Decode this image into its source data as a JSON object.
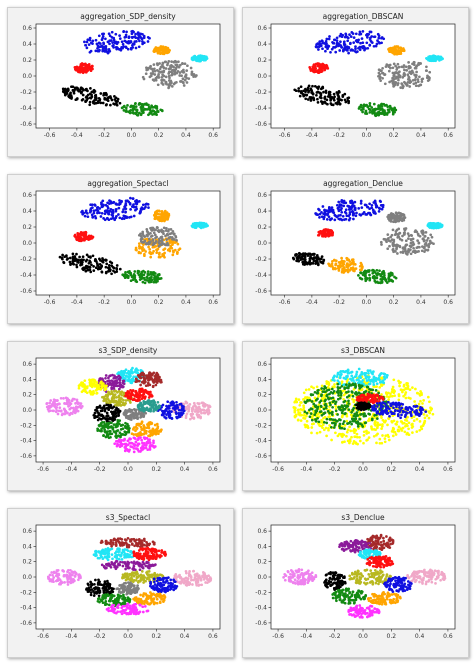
{
  "colors": {
    "blue": "#1010e0",
    "orange": "#ffa500",
    "cyan": "#22e5f5",
    "red": "#ff1010",
    "gray": "#7f7f7f",
    "black": "#000000",
    "green": "#138a13",
    "yellow": "#ffff00",
    "purple": "#8b1a9a",
    "pink": "#f0a8c8",
    "violet": "#ee82ee",
    "brown": "#a52a2a",
    "lightblue": "#9ecfff",
    "olive": "#b8b820",
    "magenta": "#ff33ff",
    "teal": "#2a9d8f",
    "axes_bg": "#ffffff",
    "panel_bg": "#f2f2f2"
  },
  "chart_data": [
    {
      "type": "scatter",
      "title": "aggregation_SDP_density",
      "xlabel": "",
      "ylabel": "",
      "xlim": [
        -0.7,
        0.65
      ],
      "ylim": [
        -0.65,
        0.65
      ],
      "xticks": [
        "-0.6",
        "-0.4",
        "-0.2",
        "0.0",
        "0.2",
        "0.4",
        "0.6"
      ],
      "yticks": [
        "0.6",
        "0.4",
        "0.2",
        "0.0",
        "-0.2",
        "-0.4",
        "-0.6"
      ],
      "clusters": [
        {
          "color": "blue",
          "cx": -0.12,
          "cy": 0.42,
          "rx": 0.26,
          "ry": 0.13,
          "rot": 15
        },
        {
          "color": "orange",
          "cx": 0.22,
          "cy": 0.32,
          "rx": 0.06,
          "ry": 0.05,
          "rot": 0
        },
        {
          "color": "cyan",
          "cx": 0.5,
          "cy": 0.22,
          "rx": 0.06,
          "ry": 0.035,
          "rot": 0
        },
        {
          "color": "red",
          "cx": -0.35,
          "cy": 0.1,
          "rx": 0.07,
          "ry": 0.06,
          "rot": 0
        },
        {
          "color": "gray",
          "cx": 0.28,
          "cy": 0.02,
          "rx": 0.2,
          "ry": 0.17,
          "rot": 0
        },
        {
          "color": "black",
          "cx": -0.3,
          "cy": -0.26,
          "rx": 0.24,
          "ry": 0.1,
          "rot": -22
        },
        {
          "color": "green",
          "cx": 0.08,
          "cy": -0.42,
          "rx": 0.15,
          "ry": 0.08,
          "rot": -10
        }
      ]
    },
    {
      "type": "scatter",
      "title": "aggregation_DBSCAN",
      "xlabel": "",
      "ylabel": "",
      "xlim": [
        -0.7,
        0.65
      ],
      "ylim": [
        -0.65,
        0.65
      ],
      "xticks": [
        "-0.6",
        "-0.4",
        "-0.2",
        "0.0",
        "0.2",
        "0.4",
        "0.6"
      ],
      "yticks": [
        "0.6",
        "0.4",
        "0.2",
        "0.0",
        "-0.2",
        "-0.4",
        "-0.6"
      ],
      "clusters": [
        {
          "color": "blue",
          "cx": -0.12,
          "cy": 0.42,
          "rx": 0.26,
          "ry": 0.13,
          "rot": 15
        },
        {
          "color": "orange",
          "cx": 0.22,
          "cy": 0.32,
          "rx": 0.06,
          "ry": 0.05,
          "rot": 0
        },
        {
          "color": "cyan",
          "cx": 0.5,
          "cy": 0.22,
          "rx": 0.06,
          "ry": 0.035,
          "rot": 0
        },
        {
          "color": "red",
          "cx": -0.35,
          "cy": 0.1,
          "rx": 0.07,
          "ry": 0.06,
          "rot": 0
        },
        {
          "color": "gray",
          "cx": 0.28,
          "cy": 0.02,
          "rx": 0.2,
          "ry": 0.17,
          "rot": 0
        },
        {
          "color": "black",
          "cx": -0.32,
          "cy": -0.24,
          "rx": 0.22,
          "ry": 0.1,
          "rot": -22
        },
        {
          "color": "green",
          "cx": 0.08,
          "cy": -0.42,
          "rx": 0.15,
          "ry": 0.08,
          "rot": -10
        }
      ]
    },
    {
      "type": "scatter",
      "title": "aggregation_Spectacl",
      "xlabel": "",
      "ylabel": "",
      "xlim": [
        -0.7,
        0.65
      ],
      "ylim": [
        -0.65,
        0.65
      ],
      "xticks": [
        "-0.6",
        "-0.4",
        "-0.2",
        "0.0",
        "0.2",
        "0.4",
        "0.6"
      ],
      "yticks": [
        "0.6",
        "0.4",
        "0.2",
        "0.0",
        "-0.2",
        "-0.4",
        "-0.6"
      ],
      "clusters": [
        {
          "color": "blue",
          "cx": -0.12,
          "cy": 0.42,
          "rx": 0.26,
          "ry": 0.13,
          "rot": 15
        },
        {
          "color": "orange",
          "cx": 0.22,
          "cy": 0.34,
          "rx": 0.06,
          "ry": 0.07,
          "rot": 0
        },
        {
          "color": "orange",
          "cx": 0.2,
          "cy": -0.06,
          "rx": 0.17,
          "ry": 0.13,
          "rot": 0
        },
        {
          "color": "gray",
          "cx": 0.2,
          "cy": 0.08,
          "rx": 0.15,
          "ry": 0.12,
          "rot": 0
        },
        {
          "color": "cyan",
          "cx": 0.5,
          "cy": 0.22,
          "rx": 0.06,
          "ry": 0.035,
          "rot": 0
        },
        {
          "color": "red",
          "cx": -0.35,
          "cy": 0.08,
          "rx": 0.07,
          "ry": 0.06,
          "rot": 0
        },
        {
          "color": "black",
          "cx": -0.3,
          "cy": -0.26,
          "rx": 0.24,
          "ry": 0.1,
          "rot": -22
        },
        {
          "color": "green",
          "cx": 0.08,
          "cy": -0.42,
          "rx": 0.15,
          "ry": 0.08,
          "rot": -10
        }
      ]
    },
    {
      "type": "scatter",
      "title": "aggregation_Denclue",
      "xlabel": "",
      "ylabel": "",
      "xlim": [
        -0.7,
        0.65
      ],
      "ylim": [
        -0.65,
        0.65
      ],
      "xticks": [
        "-0.6",
        "-0.4",
        "-0.2",
        "0.0",
        "0.2",
        "0.4",
        "0.6"
      ],
      "yticks": [
        "0.6",
        "0.4",
        "0.2",
        "0.0",
        "-0.2",
        "-0.4",
        "-0.6"
      ],
      "clusters": [
        {
          "color": "blue",
          "cx": -0.12,
          "cy": 0.42,
          "rx": 0.26,
          "ry": 0.13,
          "rot": 15
        },
        {
          "color": "gray",
          "cx": 0.22,
          "cy": 0.32,
          "rx": 0.07,
          "ry": 0.06,
          "rot": 0
        },
        {
          "color": "gray",
          "cx": 0.3,
          "cy": 0.02,
          "rx": 0.2,
          "ry": 0.17,
          "rot": 0
        },
        {
          "color": "cyan",
          "cx": 0.5,
          "cy": 0.22,
          "rx": 0.06,
          "ry": 0.035,
          "rot": 0
        },
        {
          "color": "red",
          "cx": -0.3,
          "cy": 0.12,
          "rx": 0.06,
          "ry": 0.05,
          "rot": 0
        },
        {
          "color": "black",
          "cx": -0.42,
          "cy": -0.2,
          "rx": 0.12,
          "ry": 0.08,
          "rot": -15
        },
        {
          "color": "orange",
          "cx": -0.15,
          "cy": -0.28,
          "rx": 0.13,
          "ry": 0.09,
          "rot": -15
        },
        {
          "color": "green",
          "cx": 0.08,
          "cy": -0.42,
          "rx": 0.15,
          "ry": 0.08,
          "rot": -10
        }
      ]
    },
    {
      "type": "scatter",
      "title": "s3_SDP_density",
      "xlabel": "",
      "ylabel": "",
      "xlim": [
        -0.65,
        0.65
      ],
      "ylim": [
        -0.68,
        0.68
      ],
      "xticks": [
        "-0.6",
        "-0.4",
        "-0.2",
        "0.0",
        "0.2",
        "0.4",
        "0.6"
      ],
      "yticks": [
        "0.6",
        "0.4",
        "0.2",
        "0.0",
        "-0.2",
        "-0.4",
        "-0.6"
      ],
      "clusters": [
        {
          "color": "cyan",
          "cx": 0.02,
          "cy": 0.45,
          "rx": 0.1,
          "ry": 0.1,
          "rot": 0
        },
        {
          "color": "purple",
          "cx": -0.12,
          "cy": 0.35,
          "rx": 0.1,
          "ry": 0.12,
          "rot": 0
        },
        {
          "color": "yellow",
          "cx": -0.25,
          "cy": 0.3,
          "rx": 0.1,
          "ry": 0.1,
          "rot": 0
        },
        {
          "color": "brown",
          "cx": 0.15,
          "cy": 0.4,
          "rx": 0.1,
          "ry": 0.1,
          "rot": 0
        },
        {
          "color": "olive",
          "cx": -0.08,
          "cy": 0.15,
          "rx": 0.12,
          "ry": 0.1,
          "rot": 0
        },
        {
          "color": "red",
          "cx": 0.08,
          "cy": 0.2,
          "rx": 0.1,
          "ry": 0.08,
          "rot": 0
        },
        {
          "color": "pink",
          "cx": 0.45,
          "cy": 0.0,
          "rx": 0.14,
          "ry": 0.12,
          "rot": 0
        },
        {
          "color": "violet",
          "cx": -0.45,
          "cy": 0.05,
          "rx": 0.13,
          "ry": 0.12,
          "rot": 0
        },
        {
          "color": "black",
          "cx": -0.15,
          "cy": -0.05,
          "rx": 0.1,
          "ry": 0.12,
          "rot": 0
        },
        {
          "color": "gray",
          "cx": 0.05,
          "cy": -0.05,
          "rx": 0.08,
          "ry": 0.08,
          "rot": 0
        },
        {
          "color": "blue",
          "cx": 0.3,
          "cy": 0.0,
          "rx": 0.1,
          "ry": 0.12,
          "rot": 0
        },
        {
          "color": "teal",
          "cx": 0.15,
          "cy": 0.05,
          "rx": 0.08,
          "ry": 0.08,
          "rot": 0
        },
        {
          "color": "orange",
          "cx": 0.12,
          "cy": -0.25,
          "rx": 0.12,
          "ry": 0.1,
          "rot": 0
        },
        {
          "color": "green",
          "cx": -0.1,
          "cy": -0.25,
          "rx": 0.12,
          "ry": 0.12,
          "rot": 0
        },
        {
          "color": "magenta",
          "cx": 0.05,
          "cy": -0.45,
          "rx": 0.15,
          "ry": 0.1,
          "rot": 0
        }
      ]
    },
    {
      "type": "scatter",
      "title": "s3_DBSCAN",
      "xlabel": "",
      "ylabel": "",
      "xlim": [
        -0.65,
        0.65
      ],
      "ylim": [
        -0.68,
        0.68
      ],
      "xticks": [
        "-0.6",
        "-0.4",
        "-0.2",
        "0.0",
        "0.2",
        "0.4",
        "0.6"
      ],
      "yticks": [
        "0.6",
        "0.4",
        "0.2",
        "0.0",
        "-0.2",
        "-0.4",
        "-0.6"
      ],
      "clusters": [
        {
          "color": "yellow",
          "cx": 0.0,
          "cy": 0.0,
          "rx": 0.5,
          "ry": 0.45,
          "rot": 0
        },
        {
          "color": "cyan",
          "cx": -0.02,
          "cy": 0.42,
          "rx": 0.2,
          "ry": 0.12,
          "rot": 0
        },
        {
          "color": "green",
          "cx": -0.12,
          "cy": 0.05,
          "rx": 0.3,
          "ry": 0.3,
          "rot": 0
        },
        {
          "color": "red",
          "cx": 0.05,
          "cy": 0.15,
          "rx": 0.1,
          "ry": 0.06,
          "rot": 0
        },
        {
          "color": "blue",
          "cx": 0.25,
          "cy": 0.0,
          "rx": 0.2,
          "ry": 0.1,
          "rot": -10
        },
        {
          "color": "black",
          "cx": 0.0,
          "cy": 0.05,
          "rx": 0.05,
          "ry": 0.05,
          "rot": 0
        }
      ]
    },
    {
      "type": "scatter",
      "title": "s3_Spectacl",
      "xlabel": "",
      "ylabel": "",
      "xlim": [
        -0.65,
        0.65
      ],
      "ylim": [
        -0.68,
        0.68
      ],
      "xticks": [
        "-0.6",
        "-0.4",
        "-0.2",
        "0.0",
        "0.2",
        "0.4",
        "0.6"
      ],
      "yticks": [
        "0.6",
        "0.4",
        "0.2",
        "0.0",
        "-0.2",
        "-0.4",
        "-0.6"
      ],
      "clusters": [
        {
          "color": "brown",
          "cx": 0.0,
          "cy": 0.45,
          "rx": 0.2,
          "ry": 0.06,
          "rot": 0
        },
        {
          "color": "cyan",
          "cx": -0.1,
          "cy": 0.3,
          "rx": 0.15,
          "ry": 0.08,
          "rot": 0
        },
        {
          "color": "red",
          "cx": 0.15,
          "cy": 0.3,
          "rx": 0.12,
          "ry": 0.08,
          "rot": 0
        },
        {
          "color": "purple",
          "cx": 0.0,
          "cy": 0.15,
          "rx": 0.2,
          "ry": 0.06,
          "rot": 0
        },
        {
          "color": "violet",
          "cx": -0.45,
          "cy": 0.0,
          "rx": 0.12,
          "ry": 0.1,
          "rot": 0
        },
        {
          "color": "pink",
          "cx": 0.45,
          "cy": -0.02,
          "rx": 0.14,
          "ry": 0.1,
          "rot": 0
        },
        {
          "color": "olive",
          "cx": 0.1,
          "cy": 0.0,
          "rx": 0.15,
          "ry": 0.08,
          "rot": 0
        },
        {
          "color": "black",
          "cx": -0.2,
          "cy": -0.15,
          "rx": 0.1,
          "ry": 0.12,
          "rot": 0
        },
        {
          "color": "gray",
          "cx": 0.0,
          "cy": -0.15,
          "rx": 0.08,
          "ry": 0.08,
          "rot": 0
        },
        {
          "color": "blue",
          "cx": 0.25,
          "cy": -0.1,
          "rx": 0.1,
          "ry": 0.1,
          "rot": 0
        },
        {
          "color": "green",
          "cx": -0.1,
          "cy": -0.3,
          "rx": 0.12,
          "ry": 0.08,
          "rot": 0
        },
        {
          "color": "orange",
          "cx": 0.15,
          "cy": -0.28,
          "rx": 0.12,
          "ry": 0.08,
          "rot": 0
        },
        {
          "color": "magenta",
          "cx": 0.0,
          "cy": -0.42,
          "rx": 0.15,
          "ry": 0.07,
          "rot": 0
        }
      ]
    },
    {
      "type": "scatter",
      "title": "s3_Denclue",
      "xlabel": "",
      "ylabel": "",
      "xlim": [
        -0.65,
        0.65
      ],
      "ylim": [
        -0.68,
        0.68
      ],
      "xticks": [
        "-0.6",
        "-0.4",
        "-0.2",
        "0.0",
        "0.2",
        "0.4",
        "0.6"
      ],
      "yticks": [
        "0.6",
        "0.4",
        "0.2",
        "0.0",
        "-0.2",
        "-0.4",
        "-0.6"
      ],
      "clusters": [
        {
          "color": "brown",
          "cx": 0.12,
          "cy": 0.45,
          "rx": 0.1,
          "ry": 0.1,
          "rot": 0
        },
        {
          "color": "purple",
          "cx": -0.05,
          "cy": 0.4,
          "rx": 0.12,
          "ry": 0.08,
          "rot": 0
        },
        {
          "color": "cyan",
          "cx": 0.05,
          "cy": 0.3,
          "rx": 0.08,
          "ry": 0.06,
          "rot": 0
        },
        {
          "color": "red",
          "cx": 0.12,
          "cy": 0.2,
          "rx": 0.1,
          "ry": 0.08,
          "rot": 0
        },
        {
          "color": "violet",
          "cx": -0.45,
          "cy": 0.0,
          "rx": 0.12,
          "ry": 0.1,
          "rot": 0
        },
        {
          "color": "pink",
          "cx": 0.45,
          "cy": 0.0,
          "rx": 0.14,
          "ry": 0.1,
          "rot": 0
        },
        {
          "color": "olive",
          "cx": 0.05,
          "cy": 0.0,
          "rx": 0.15,
          "ry": 0.1,
          "rot": 0
        },
        {
          "color": "black",
          "cx": -0.2,
          "cy": -0.05,
          "rx": 0.08,
          "ry": 0.12,
          "rot": 0
        },
        {
          "color": "blue",
          "cx": 0.25,
          "cy": -0.1,
          "rx": 0.1,
          "ry": 0.1,
          "rot": 0
        },
        {
          "color": "green",
          "cx": -0.1,
          "cy": -0.25,
          "rx": 0.12,
          "ry": 0.1,
          "rot": 0
        },
        {
          "color": "orange",
          "cx": 0.15,
          "cy": -0.28,
          "rx": 0.12,
          "ry": 0.08,
          "rot": 0
        },
        {
          "color": "magenta",
          "cx": 0.0,
          "cy": -0.45,
          "rx": 0.12,
          "ry": 0.08,
          "rot": 0
        }
      ]
    }
  ]
}
